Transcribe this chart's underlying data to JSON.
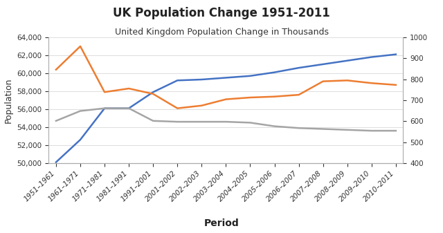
{
  "title": "UK Population Change 1951-2011",
  "subtitle": "United Kingdom Population Change in Thousands",
  "xlabel": "Period",
  "ylabel": "Population",
  "categories": [
    "1951–1961",
    "1961–1971",
    "1971–1981",
    "1981–1991",
    "1991–2001",
    "2001–2002",
    "2002–2003",
    "2003–2004",
    "2004–2005",
    "2005–2006",
    "2006–2007",
    "2007–2008",
    "2008–2009",
    "2009–2010",
    "2010–2011"
  ],
  "blue_line": [
    50100,
    52600,
    56100,
    56100,
    57900,
    59200,
    59300,
    59500,
    59700,
    60100,
    60600,
    61000,
    61400,
    61800,
    62100
  ],
  "orange_line": [
    60400,
    63000,
    57900,
    58300,
    57700,
    56100,
    56400,
    57100,
    57300,
    57400,
    57600,
    59100,
    59200,
    58900,
    58700
  ],
  "gray_line": [
    54700,
    55800,
    56100,
    56100,
    54700,
    54600,
    54600,
    54600,
    54500,
    54100,
    53900,
    53800,
    53700,
    53600,
    53600
  ],
  "blue_color": "#4472C4",
  "orange_color": "#ED7D31",
  "gray_color": "#A5A5A5",
  "ylim_left": [
    50000,
    64000
  ],
  "ylim_right": [
    400,
    1000
  ],
  "yticks_left": [
    50000,
    52000,
    54000,
    56000,
    58000,
    60000,
    62000,
    64000
  ],
  "yticks_right": [
    400,
    500,
    600,
    700,
    800,
    900,
    1000
  ],
  "bg_color": "#FFFFFF",
  "line_width": 1.8,
  "title_fontsize": 12,
  "subtitle_fontsize": 9,
  "axis_label_fontsize": 9,
  "tick_fontsize": 7.5
}
